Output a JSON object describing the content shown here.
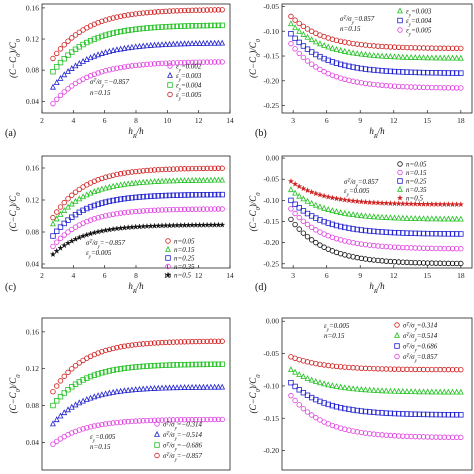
{
  "chart_data": [
    {
      "id": "a",
      "type": "scatter",
      "panel_label": "(a)",
      "xlabel": "h_R/h",
      "ylabel": "(C−C_0)/C_0",
      "xlim": [
        2,
        14
      ],
      "ylim": [
        0.025,
        0.165
      ],
      "xticks": [
        2,
        4,
        6,
        8,
        10,
        12,
        14
      ],
      "yticks": [
        0.04,
        0.08,
        0.12,
        0.16
      ],
      "ytick_labels": [
        "0.04",
        "0.08",
        "0.12",
        "0.16"
      ],
      "grid": false,
      "legend_position": "center-right",
      "annotations": [
        "σ^T/σ_y=−0.857",
        "n=0.15"
      ],
      "series": [
        {
          "name": "ε_y=0.002",
          "color": "#e040e0",
          "marker": "circle",
          "x_start": 2.7,
          "x_end": 13.5,
          "points": 46,
          "values": {
            "start": 0.037,
            "plateau": 0.091,
            "tau": 2.2
          }
        },
        {
          "name": "ε_y=0.003",
          "color": "#2020d0",
          "marker": "triangle",
          "x_start": 2.7,
          "x_end": 13.5,
          "points": 46,
          "values": {
            "start": 0.058,
            "plateau": 0.115,
            "tau": 2.2
          }
        },
        {
          "name": "ε_y=0.004",
          "color": "#20c020",
          "marker": "square",
          "x_start": 2.7,
          "x_end": 13.5,
          "points": 46,
          "values": {
            "start": 0.078,
            "plateau": 0.138,
            "tau": 2.2
          }
        },
        {
          "name": "ε_y=0.005",
          "color": "#d02020",
          "marker": "circle",
          "x_start": 2.7,
          "x_end": 13.5,
          "points": 46,
          "values": {
            "start": 0.095,
            "plateau": 0.158,
            "tau": 2.2
          }
        }
      ]
    },
    {
      "id": "b",
      "type": "scatter",
      "panel_label": "(b)",
      "xlabel": "h_R/h",
      "ylabel": "(C−C_0)/C_0",
      "xlim": [
        2,
        19
      ],
      "ylim": [
        -0.265,
        -0.045
      ],
      "xticks": [
        3,
        6,
        9,
        12,
        15,
        18
      ],
      "yticks": [
        -0.05,
        -0.1,
        -0.15,
        -0.2,
        -0.25
      ],
      "ytick_labels": [
        "-0.05",
        "-0.10",
        "-0.15",
        "-0.20",
        "-0.25"
      ],
      "grid": false,
      "legend_position": "top-right",
      "annotations": [
        "σ^T/σ_y=0.857",
        "n=0.15"
      ],
      "series": [
        {
          "name": "ε_y=0.003",
          "color": "#20c020",
          "marker": "triangle",
          "x_start": 2.8,
          "x_end": 18,
          "points": 42,
          "values": {
            "start": -0.085,
            "plateau": -0.155,
            "tau": 3.0
          }
        },
        {
          "name": "ε_y=0.004",
          "color": "#2020d0",
          "marker": "square",
          "x_start": 2.8,
          "x_end": 18,
          "points": 42,
          "values": {
            "start": -0.105,
            "plateau": -0.185,
            "tau": 3.0
          }
        },
        {
          "name": "ε_y=0.005",
          "color": "#e040e0",
          "marker": "circle",
          "x_start": 2.8,
          "x_end": 18,
          "points": 42,
          "values": {
            "start": -0.125,
            "plateau": -0.215,
            "tau": 3.0
          }
        },
        {
          "name": "",
          "color": "#d02020",
          "marker": "circle",
          "x_start": 2.8,
          "x_end": 18,
          "points": 42,
          "values": {
            "start": -0.07,
            "plateau": -0.135,
            "tau": 3.0
          }
        }
      ]
    },
    {
      "id": "c",
      "type": "scatter",
      "panel_label": "(c)",
      "xlabel": "h_R/h",
      "ylabel": "(C−C_0)/C_0",
      "xlim": [
        2,
        14
      ],
      "ylim": [
        0.035,
        0.175
      ],
      "xticks": [
        2,
        4,
        6,
        8,
        10,
        12,
        14
      ],
      "yticks": [
        0.04,
        0.08,
        0.12,
        0.16
      ],
      "ytick_labels": [
        "0.04",
        "0.08",
        "0.12",
        "0.16"
      ],
      "grid": false,
      "legend_position": "center-right",
      "annotations": [
        "σ^T/σ_y=−0.857",
        "ε_y=0.005"
      ],
      "series": [
        {
          "name": "n=0.05",
          "color": "#d02020",
          "marker": "circle",
          "x_start": 2.7,
          "x_end": 13.5,
          "points": 46,
          "values": {
            "start": 0.098,
            "plateau": 0.16,
            "tau": 2.0
          }
        },
        {
          "name": "n=0.15",
          "color": "#20c020",
          "marker": "triangle",
          "x_start": 2.7,
          "x_end": 13.5,
          "points": 46,
          "values": {
            "start": 0.09,
            "plateau": 0.145,
            "tau": 2.0
          }
        },
        {
          "name": "n=0.25",
          "color": "#2020d0",
          "marker": "square",
          "x_start": 2.7,
          "x_end": 13.5,
          "points": 46,
          "values": {
            "start": 0.075,
            "plateau": 0.127,
            "tau": 2.0
          }
        },
        {
          "name": "n=0.35",
          "color": "#e040e0",
          "marker": "circle",
          "x_start": 2.7,
          "x_end": 13.5,
          "points": 46,
          "values": {
            "start": 0.062,
            "plateau": 0.109,
            "tau": 2.0
          }
        },
        {
          "name": "n=0.5",
          "color": "#111111",
          "marker": "star",
          "x_start": 2.7,
          "x_end": 13.5,
          "points": 46,
          "values": {
            "start": 0.052,
            "plateau": 0.089,
            "tau": 2.0
          }
        }
      ]
    },
    {
      "id": "d",
      "type": "scatter",
      "panel_label": "(d)",
      "xlabel": "h_R/h",
      "ylabel": "(C−C_0)/C_0",
      "xlim": [
        2,
        19
      ],
      "ylim": [
        -0.26,
        0.005
      ],
      "xticks": [
        3,
        6,
        9,
        12,
        15,
        18
      ],
      "yticks": [
        0.0,
        -0.05,
        -0.1,
        -0.15,
        -0.2,
        -0.25
      ],
      "ytick_labels": [
        "0.00",
        "-0.05",
        "-0.10",
        "-0.15",
        "-0.20",
        "-0.25"
      ],
      "grid": false,
      "legend_position": "top-right",
      "annotations": [
        "σ^T/σ_y=0.857",
        "ε_y=0.005"
      ],
      "series": [
        {
          "name": "n=0.05",
          "color": "#111111",
          "marker": "circle",
          "x_start": 2.8,
          "x_end": 18,
          "points": 42,
          "values": {
            "start": -0.145,
            "plateau": -0.25,
            "tau": 3.0
          }
        },
        {
          "name": "n=0.15",
          "color": "#e040e0",
          "marker": "circle",
          "x_start": 2.8,
          "x_end": 18,
          "points": 42,
          "values": {
            "start": -0.12,
            "plateau": -0.215,
            "tau": 3.0
          }
        },
        {
          "name": "n=0.25",
          "color": "#2020d0",
          "marker": "square",
          "x_start": 2.8,
          "x_end": 18,
          "points": 42,
          "values": {
            "start": -0.1,
            "plateau": -0.18,
            "tau": 3.0
          }
        },
        {
          "name": "n=0.35",
          "color": "#20c020",
          "marker": "triangle",
          "x_start": 2.8,
          "x_end": 18,
          "points": 42,
          "values": {
            "start": -0.075,
            "plateau": -0.145,
            "tau": 3.0
          }
        },
        {
          "name": "n=0.5",
          "color": "#d02020",
          "marker": "star",
          "x_start": 2.8,
          "x_end": 18,
          "points": 42,
          "values": {
            "start": -0.055,
            "plateau": -0.11,
            "tau": 3.0
          }
        }
      ]
    },
    {
      "id": "e",
      "type": "scatter",
      "panel_label": "",
      "xlabel": "",
      "ylabel": "(C−C_0)/C_0",
      "xlim": [
        2,
        14
      ],
      "ylim": [
        0.01,
        0.175
      ],
      "xticks": [],
      "yticks": [
        0.04,
        0.08,
        0.12,
        0.16
      ],
      "ytick_labels": [
        "0.04",
        "0.08",
        "0.12",
        "0.16"
      ],
      "grid": false,
      "legend_position": "bottom-right",
      "annotations": [
        "ε_y=0.005",
        "n=0.15"
      ],
      "series": [
        {
          "name": "σ^T/σ_y=−0.314",
          "color": "#e040e0",
          "marker": "circle",
          "x_start": 2.7,
          "x_end": 13.5,
          "points": 46,
          "values": {
            "start": 0.038,
            "plateau": 0.065,
            "tau": 2.0
          }
        },
        {
          "name": "σ^T/σ_y=−0.514",
          "color": "#2020d0",
          "marker": "triangle",
          "x_start": 2.7,
          "x_end": 13.5,
          "points": 46,
          "values": {
            "start": 0.06,
            "plateau": 0.1,
            "tau": 2.0
          }
        },
        {
          "name": "σ^T/σ_y=−0.686",
          "color": "#20c020",
          "marker": "square",
          "x_start": 2.7,
          "x_end": 13.5,
          "points": 46,
          "values": {
            "start": 0.08,
            "plateau": 0.125,
            "tau": 2.0
          }
        },
        {
          "name": "σ^T/σ_y=−0.857",
          "color": "#d02020",
          "marker": "circle",
          "x_start": 2.7,
          "x_end": 13.5,
          "points": 46,
          "values": {
            "start": 0.095,
            "plateau": 0.15,
            "tau": 2.0
          }
        }
      ]
    },
    {
      "id": "f",
      "type": "scatter",
      "panel_label": "",
      "xlabel": "",
      "ylabel": "(C−C_0)/C_0",
      "xlim": [
        2,
        19
      ],
      "ylim": [
        -0.23,
        0.005
      ],
      "xticks": [],
      "yticks": [
        0.0,
        -0.05,
        -0.1,
        -0.15,
        -0.2
      ],
      "ytick_labels": [
        "0.00",
        "-0.05",
        "-0.10",
        "-0.15",
        "-0.20"
      ],
      "grid": false,
      "legend_position": "top-right",
      "annotations": [
        "ε_y=0.005",
        "n=0.15"
      ],
      "series": [
        {
          "name": "σ^T/σ_y=0.314",
          "color": "#d02020",
          "marker": "circle",
          "x_start": 2.8,
          "x_end": 18,
          "points": 42,
          "values": {
            "start": -0.055,
            "plateau": -0.075,
            "tau": 3.0
          }
        },
        {
          "name": "σ^T/σ_y=0.514",
          "color": "#20c020",
          "marker": "triangle",
          "x_start": 2.8,
          "x_end": 18,
          "points": 42,
          "values": {
            "start": -0.075,
            "plateau": -0.11,
            "tau": 3.0
          }
        },
        {
          "name": "σ^T/σ_y=0.686",
          "color": "#2020d0",
          "marker": "square",
          "x_start": 2.8,
          "x_end": 18,
          "points": 42,
          "values": {
            "start": -0.095,
            "plateau": -0.145,
            "tau": 3.0
          }
        },
        {
          "name": "σ^T/σ_y=0.857",
          "color": "#e040e0",
          "marker": "circle",
          "x_start": 2.8,
          "x_end": 18,
          "points": 42,
          "values": {
            "start": -0.115,
            "plateau": -0.18,
            "tau": 3.0
          }
        }
      ]
    }
  ]
}
